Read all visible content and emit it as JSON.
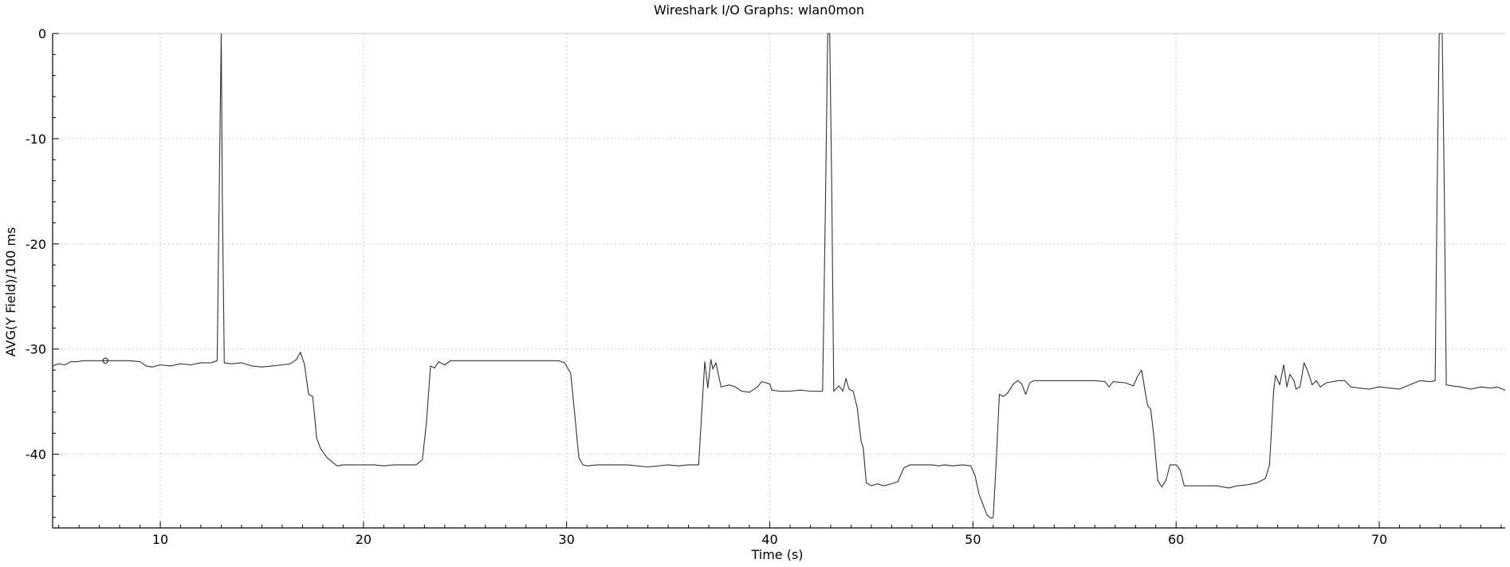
{
  "chart_data": {
    "type": "line",
    "title": "Wireshark I/O Graphs: wlan0mon",
    "xlabel": "Time (s)",
    "ylabel": "AVG(Y Field)/100 ms",
    "xlim": [
      4.7,
      76.2
    ],
    "ylim": [
      -47,
      0
    ],
    "xticks": [
      10,
      20,
      30,
      40,
      50,
      60,
      70
    ],
    "yticks": [
      0,
      -10,
      -20,
      -30,
      -40
    ],
    "grid": true,
    "legend": "none",
    "colors": {
      "line": "#333333",
      "grid": "#c8c8c8",
      "axis": "#000000",
      "zero_line": "#c8c8c8"
    },
    "marker": {
      "x": 7.3,
      "y": -31.1
    },
    "series": [
      {
        "points": [
          [
            4.7,
            -31.6
          ],
          [
            5.0,
            -31.4
          ],
          [
            5.3,
            -31.5
          ],
          [
            5.6,
            -31.2
          ],
          [
            5.9,
            -31.2
          ],
          [
            6.2,
            -31.1
          ],
          [
            6.6,
            -31.1
          ],
          [
            7.0,
            -31.1
          ],
          [
            7.5,
            -31.1
          ],
          [
            8.0,
            -31.1
          ],
          [
            8.5,
            -31.1
          ],
          [
            9.0,
            -31.2
          ],
          [
            9.3,
            -31.6
          ],
          [
            9.6,
            -31.7
          ],
          [
            10.0,
            -31.5
          ],
          [
            10.5,
            -31.6
          ],
          [
            11.0,
            -31.4
          ],
          [
            11.5,
            -31.5
          ],
          [
            12.0,
            -31.3
          ],
          [
            12.5,
            -31.3
          ],
          [
            12.8,
            -31.1
          ],
          [
            12.9,
            -15.0
          ],
          [
            13.0,
            0
          ],
          [
            13.05,
            -15.0
          ],
          [
            13.15,
            -31.3
          ],
          [
            13.5,
            -31.4
          ],
          [
            14.0,
            -31.3
          ],
          [
            14.5,
            -31.6
          ],
          [
            15.0,
            -31.7
          ],
          [
            15.5,
            -31.6
          ],
          [
            16.0,
            -31.5
          ],
          [
            16.4,
            -31.4
          ],
          [
            16.7,
            -31.0
          ],
          [
            16.9,
            -30.3
          ],
          [
            17.1,
            -31.5
          ],
          [
            17.3,
            -34.3
          ],
          [
            17.5,
            -34.5
          ],
          [
            17.7,
            -38.5
          ],
          [
            17.9,
            -39.5
          ],
          [
            18.2,
            -40.3
          ],
          [
            18.5,
            -40.8
          ],
          [
            18.7,
            -41.1
          ],
          [
            19.0,
            -41.0
          ],
          [
            19.5,
            -41.0
          ],
          [
            20.0,
            -41.0
          ],
          [
            20.5,
            -41.0
          ],
          [
            21.0,
            -41.1
          ],
          [
            21.5,
            -41.0
          ],
          [
            22.0,
            -41.0
          ],
          [
            22.6,
            -41.0
          ],
          [
            22.9,
            -40.5
          ],
          [
            23.1,
            -37.0
          ],
          [
            23.3,
            -31.6
          ],
          [
            23.5,
            -31.8
          ],
          [
            23.7,
            -31.2
          ],
          [
            24.0,
            -31.5
          ],
          [
            24.3,
            -31.1
          ],
          [
            25.0,
            -31.1
          ],
          [
            26.0,
            -31.1
          ],
          [
            27.0,
            -31.1
          ],
          [
            28.0,
            -31.1
          ],
          [
            29.0,
            -31.1
          ],
          [
            29.6,
            -31.1
          ],
          [
            29.9,
            -31.3
          ],
          [
            30.2,
            -32.3
          ],
          [
            30.4,
            -36.2
          ],
          [
            30.6,
            -40.3
          ],
          [
            30.8,
            -41.0
          ],
          [
            31.0,
            -41.1
          ],
          [
            31.5,
            -41.0
          ],
          [
            32.0,
            -41.0
          ],
          [
            33.0,
            -41.0
          ],
          [
            34.0,
            -41.2
          ],
          [
            35.0,
            -41.0
          ],
          [
            35.5,
            -41.1
          ],
          [
            36.0,
            -41.0
          ],
          [
            36.5,
            -41.0
          ],
          [
            36.7,
            -34.5
          ],
          [
            36.8,
            -31.2
          ],
          [
            36.95,
            -33.7
          ],
          [
            37.1,
            -31.0
          ],
          [
            37.2,
            -31.9
          ],
          [
            37.35,
            -31.3
          ],
          [
            37.6,
            -33.6
          ],
          [
            38.0,
            -33.4
          ],
          [
            38.3,
            -33.6
          ],
          [
            38.6,
            -34.0
          ],
          [
            39.0,
            -34.1
          ],
          [
            39.4,
            -33.6
          ],
          [
            39.6,
            -33.1
          ],
          [
            40.0,
            -33.3
          ],
          [
            40.1,
            -33.9
          ],
          [
            40.5,
            -34.0
          ],
          [
            41.0,
            -34.0
          ],
          [
            41.5,
            -33.9
          ],
          [
            42.0,
            -34.0
          ],
          [
            42.6,
            -34.0
          ],
          [
            42.75,
            -15.0
          ],
          [
            42.85,
            0
          ],
          [
            42.95,
            0
          ],
          [
            43.05,
            -15.0
          ],
          [
            43.15,
            -34.0
          ],
          [
            43.4,
            -33.5
          ],
          [
            43.6,
            -34.0
          ],
          [
            43.75,
            -32.8
          ],
          [
            43.9,
            -33.8
          ],
          [
            44.1,
            -34.0
          ],
          [
            44.3,
            -35.5
          ],
          [
            44.5,
            -38.8
          ],
          [
            44.6,
            -39.4
          ],
          [
            44.75,
            -42.7
          ],
          [
            45.0,
            -43.0
          ],
          [
            45.3,
            -42.8
          ],
          [
            45.6,
            -43.0
          ],
          [
            46.0,
            -42.8
          ],
          [
            46.3,
            -42.6
          ],
          [
            46.6,
            -41.3
          ],
          [
            46.9,
            -41.0
          ],
          [
            47.5,
            -41.0
          ],
          [
            48.0,
            -41.0
          ],
          [
            48.3,
            -41.1
          ],
          [
            48.6,
            -41.0
          ],
          [
            49.0,
            -41.1
          ],
          [
            49.5,
            -41.0
          ],
          [
            49.9,
            -41.1
          ],
          [
            50.1,
            -42.0
          ],
          [
            50.3,
            -43.8
          ],
          [
            50.5,
            -44.8
          ],
          [
            50.7,
            -45.8
          ],
          [
            50.9,
            -46.1
          ],
          [
            51.0,
            -46.0
          ],
          [
            51.15,
            -40.5
          ],
          [
            51.3,
            -34.3
          ],
          [
            51.5,
            -34.5
          ],
          [
            51.7,
            -34.2
          ],
          [
            51.9,
            -33.6
          ],
          [
            52.0,
            -33.3
          ],
          [
            52.2,
            -33.0
          ],
          [
            52.4,
            -33.3
          ],
          [
            52.6,
            -34.3
          ],
          [
            52.8,
            -33.2
          ],
          [
            53.0,
            -33.0
          ],
          [
            54.0,
            -33.0
          ],
          [
            55.0,
            -33.0
          ],
          [
            56.0,
            -33.0
          ],
          [
            56.5,
            -33.1
          ],
          [
            56.7,
            -33.6
          ],
          [
            56.9,
            -33.1
          ],
          [
            57.5,
            -33.2
          ],
          [
            57.9,
            -33.5
          ],
          [
            58.1,
            -32.6
          ],
          [
            58.3,
            -32.0
          ],
          [
            58.5,
            -34.3
          ],
          [
            58.6,
            -35.4
          ],
          [
            58.75,
            -35.7
          ],
          [
            58.9,
            -38.2
          ],
          [
            59.1,
            -42.5
          ],
          [
            59.3,
            -43.1
          ],
          [
            59.5,
            -42.5
          ],
          [
            59.7,
            -41.0
          ],
          [
            60.0,
            -41.0
          ],
          [
            60.2,
            -41.5
          ],
          [
            60.4,
            -43.0
          ],
          [
            61.0,
            -43.0
          ],
          [
            62.0,
            -43.0
          ],
          [
            62.6,
            -43.2
          ],
          [
            63.0,
            -43.0
          ],
          [
            63.5,
            -42.9
          ],
          [
            64.0,
            -42.7
          ],
          [
            64.4,
            -42.3
          ],
          [
            64.6,
            -41.0
          ],
          [
            64.8,
            -34.0
          ],
          [
            64.9,
            -32.5
          ],
          [
            65.1,
            -33.4
          ],
          [
            65.3,
            -31.5
          ],
          [
            65.45,
            -33.6
          ],
          [
            65.6,
            -32.4
          ],
          [
            65.8,
            -33.0
          ],
          [
            65.9,
            -33.8
          ],
          [
            66.1,
            -33.6
          ],
          [
            66.3,
            -31.3
          ],
          [
            66.5,
            -32.2
          ],
          [
            66.7,
            -33.4
          ],
          [
            66.9,
            -33.0
          ],
          [
            67.1,
            -33.6
          ],
          [
            67.4,
            -33.2
          ],
          [
            68.0,
            -33.0
          ],
          [
            68.3,
            -33.0
          ],
          [
            68.6,
            -33.6
          ],
          [
            69.0,
            -33.7
          ],
          [
            69.5,
            -33.8
          ],
          [
            70.0,
            -33.6
          ],
          [
            70.5,
            -33.7
          ],
          [
            71.0,
            -33.8
          ],
          [
            71.5,
            -33.4
          ],
          [
            72.0,
            -33.0
          ],
          [
            72.5,
            -33.1
          ],
          [
            72.75,
            -33.0
          ],
          [
            72.85,
            -15.0
          ],
          [
            72.95,
            0
          ],
          [
            73.1,
            0
          ],
          [
            73.2,
            -15.0
          ],
          [
            73.3,
            -33.4
          ],
          [
            73.6,
            -33.5
          ],
          [
            74.0,
            -33.6
          ],
          [
            74.5,
            -33.8
          ],
          [
            75.0,
            -33.6
          ],
          [
            75.5,
            -33.7
          ],
          [
            75.8,
            -33.6
          ],
          [
            76.2,
            -33.9
          ]
        ]
      }
    ]
  }
}
